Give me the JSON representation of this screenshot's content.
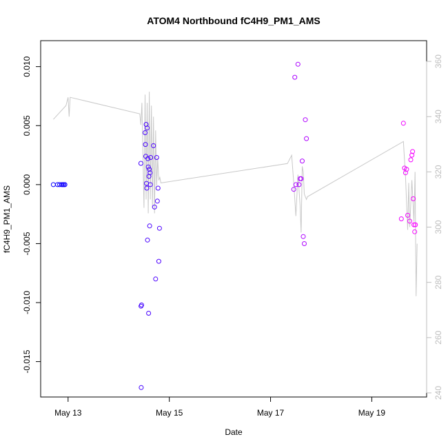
{
  "chart_data": {
    "type": "scatter",
    "title": "ATOM4 Northbound fC4H9_PM1_AMS",
    "xlabel": "Date",
    "ylabel": "fC4H9_PM1_AMS",
    "x_ticks": [
      "May 13",
      "May 15",
      "May 17",
      "May 19"
    ],
    "y_ticks": [
      "-0.015",
      "-0.010",
      "-0.005",
      "0.000",
      "0.005",
      "0.010"
    ],
    "y2_ticks": [
      "240",
      "260",
      "280",
      "300",
      "320",
      "340",
      "360"
    ],
    "xlim": [
      "2017-05-12 11:00",
      "2017-05-20 02:00"
    ],
    "ylim": [
      -0.018,
      0.0122
    ],
    "y2lim": [
      238.5,
      367.5
    ],
    "x_tick_values": [
      "2017-05-13 00:00",
      "2017-05-15 00:00",
      "2017-05-17 00:00",
      "2017-05-19 00:00"
    ],
    "y_tick_values": [
      -0.015,
      -0.01,
      -0.005,
      0.0,
      0.005,
      0.01
    ],
    "y2_tick_values": [
      240,
      260,
      280,
      300,
      320,
      340,
      360
    ],
    "point_color_start": "#0000ff",
    "point_color_end": "#ff00ff",
    "series": [
      {
        "kind": "points",
        "axis": "left",
        "x": [
          "2017-05-12 17:00",
          "2017-05-12 19:00",
          "2017-05-12 20:00",
          "2017-05-12 21:00",
          "2017-05-12 21:30",
          "2017-05-12 22:00",
          "2017-05-12 22:30",
          "2017-05-14 10:30",
          "2017-05-14 10:40",
          "2017-05-14 10:50",
          "2017-05-14 10:35",
          "2017-05-14 12:30",
          "2017-05-14 12:40",
          "2017-05-14 12:50",
          "2017-05-14 13:00",
          "2017-05-14 13:10",
          "2017-05-14 13:20",
          "2017-05-14 13:30",
          "2017-05-14 13:40",
          "2017-05-14 13:50",
          "2017-05-14 14:00",
          "2017-05-14 14:10",
          "2017-05-14 14:20",
          "2017-05-14 14:30",
          "2017-05-14 14:40",
          "2017-05-14 14:50",
          "2017-05-14 15:00",
          "2017-05-14 15:10",
          "2017-05-14 16:30",
          "2017-05-14 17:00",
          "2017-05-14 17:30",
          "2017-05-14 18:00",
          "2017-05-14 18:20",
          "2017-05-14 18:40",
          "2017-05-14 19:00",
          "2017-05-14 19:20",
          "2017-05-17 11:00",
          "2017-05-17 11:30",
          "2017-05-17 12:00",
          "2017-05-17 13:00",
          "2017-05-17 13:30",
          "2017-05-17 14:00",
          "2017-05-17 14:30",
          "2017-05-17 15:00",
          "2017-05-17 15:30",
          "2017-05-17 16:00",
          "2017-05-17 16:30",
          "2017-05-17 17:00",
          "2017-05-19 14:00",
          "2017-05-19 15:00",
          "2017-05-19 15:30",
          "2017-05-19 16:00",
          "2017-05-19 16:30",
          "2017-05-19 17:00",
          "2017-05-19 18:00",
          "2017-05-19 18:30",
          "2017-05-19 19:00",
          "2017-05-19 19:20",
          "2017-05-19 19:40",
          "2017-05-19 20:00",
          "2017-05-19 20:20",
          "2017-05-19 20:40"
        ],
        "y": [
          0.0,
          0.0,
          0.0,
          0.0,
          0.0,
          0.0,
          0.0,
          0.0018,
          -0.0172,
          -0.0102,
          -0.0103,
          0.0044,
          0.0034,
          0.0024,
          0.0051,
          0.0001,
          -0.0003,
          0.0048,
          -0.0047,
          0.0022,
          0.0015,
          -0.0109,
          0.0007,
          0.0013,
          -0.0035,
          0.001,
          0.0,
          0.0023,
          0.0033,
          -0.0019,
          -0.008,
          0.0023,
          -0.0014,
          -0.0003,
          -0.0065,
          -0.0037,
          -0.0004,
          0.0091,
          0.0,
          0.0102,
          0.0,
          0.0005,
          0.0005,
          0.002,
          -0.0044,
          -0.005,
          0.0055,
          0.0039,
          -0.0029,
          0.0052,
          0.0014,
          0.001,
          0.0013,
          -0.0026,
          -0.0031,
          0.0021,
          0.0025,
          0.0028,
          -0.0012,
          -0.0034,
          -0.004,
          -0.0034
        ],
        "yfix": null
      },
      {
        "kind": "line",
        "axis": "right",
        "color": "#c8c8c8",
        "x": [
          "2017-05-12 17:00",
          "2017-05-12 23:00",
          "2017-05-13 00:00",
          "2017-05-13 00:30",
          "2017-05-13 01:00",
          "2017-05-14 10:00",
          "2017-05-14 10:30",
          "2017-05-14 11:00",
          "2017-05-14 12:00",
          "2017-05-14 12:30",
          "2017-05-14 13:00",
          "2017-05-14 13:30",
          "2017-05-14 14:00",
          "2017-05-14 14:30",
          "2017-05-14 15:00",
          "2017-05-14 15:30",
          "2017-05-14 16:00",
          "2017-05-14 16:30",
          "2017-05-14 17:00",
          "2017-05-14 17:30",
          "2017-05-14 18:00",
          "2017-05-14 18:30",
          "2017-05-14 19:00",
          "2017-05-14 19:30",
          "2017-05-14 20:00",
          "2017-05-17 08:00",
          "2017-05-17 10:00",
          "2017-05-17 11:00",
          "2017-05-17 12:00",
          "2017-05-17 13:00",
          "2017-05-17 14:00",
          "2017-05-17 14:30",
          "2017-05-17 15:00",
          "2017-05-17 15:30",
          "2017-05-17 16:00",
          "2017-05-17 17:00",
          "2017-05-17 17:30",
          "2017-05-19 15:00",
          "2017-05-19 16:00",
          "2017-05-19 17:00",
          "2017-05-19 17:30",
          "2017-05-19 18:00",
          "2017-05-19 19:00",
          "2017-05-19 20:00",
          "2017-05-19 20:30",
          "2017-05-19 21:00",
          "2017-05-19 21:30"
        ],
        "y": [
          339,
          344,
          347,
          340,
          347,
          341,
          337,
          345,
          307,
          348,
          310,
          345,
          305,
          349,
          310,
          344,
          307,
          340,
          305,
          335,
          315,
          325,
          317,
          318,
          316,
          323,
          326,
          316,
          304,
          319,
          308,
          298,
          322,
          320,
          312,
          310,
          311,
          331,
          318,
          299,
          316,
          300,
          317,
          302,
          320,
          275,
          294
        ]
      }
    ]
  }
}
